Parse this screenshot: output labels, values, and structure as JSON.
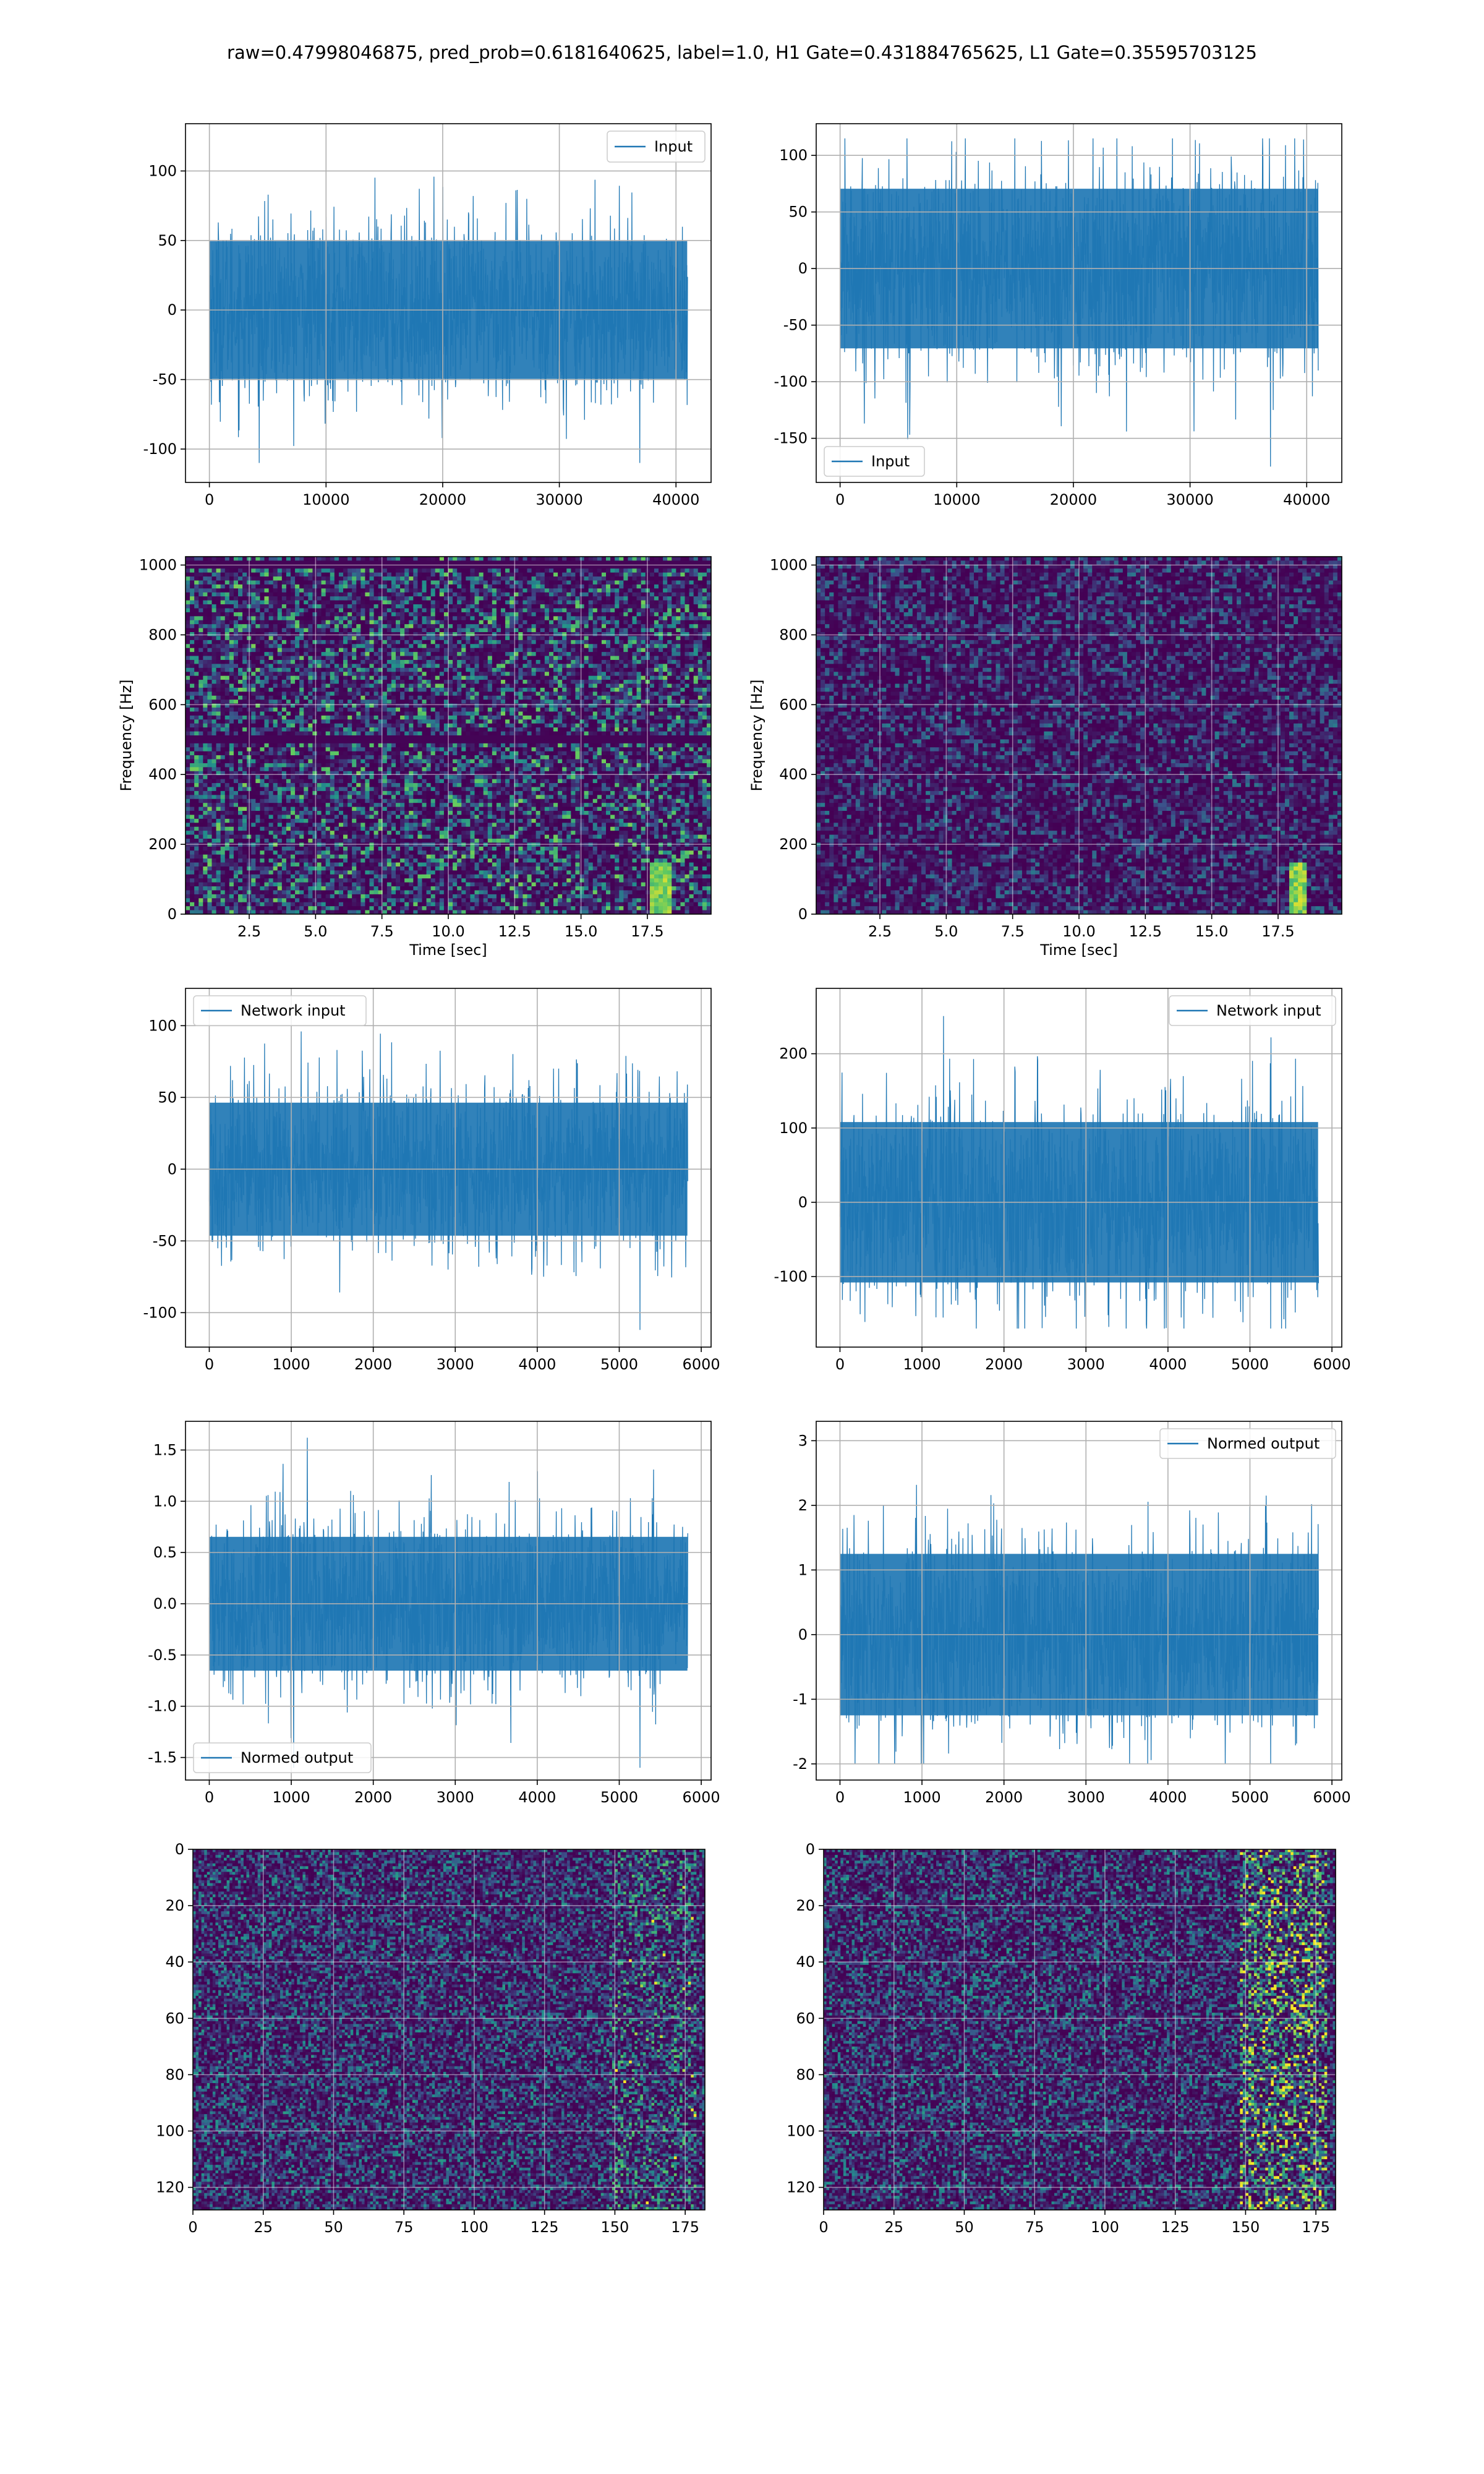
{
  "title": "raw=0.47998046875, pred_prob=0.6181640625, label=1.0, H1 Gate=0.431884765625, L1 Gate=0.35595703125",
  "colors": {
    "line": "#1f77b4",
    "grid": "#b0b0b0",
    "spine": "#000000"
  },
  "chart_data": [
    {
      "id": "h1-input",
      "type": "line",
      "series": [
        {
          "name": "Input",
          "n_points": 40960,
          "amplitude_range": [
            -110,
            123
          ]
        }
      ],
      "legend": "top-right",
      "xlim": [
        -2048,
        43008
      ],
      "ylim": [
        -124,
        134
      ],
      "xticks": [
        0,
        10000,
        20000,
        30000,
        40000
      ],
      "yticks": [
        -100,
        -50,
        0,
        50,
        100
      ],
      "grid": true,
      "xlabel": "",
      "ylabel": ""
    },
    {
      "id": "l1-input",
      "type": "line",
      "series": [
        {
          "name": "Input",
          "n_points": 40960,
          "amplitude_range": [
            -175,
            115
          ]
        }
      ],
      "legend": "bottom-left",
      "xlim": [
        -2048,
        43008
      ],
      "ylim": [
        -189,
        128
      ],
      "xticks": [
        0,
        10000,
        20000,
        30000,
        40000
      ],
      "yticks": [
        -150,
        -100,
        -50,
        0,
        50,
        100
      ],
      "grid": true,
      "xlabel": "",
      "ylabel": ""
    },
    {
      "id": "h1-spectrogram",
      "type": "heatmap",
      "colormap": "viridis",
      "xlim": [
        0.1,
        19.9
      ],
      "ylim": [
        0,
        1024
      ],
      "xticks": [
        2.5,
        5.0,
        7.5,
        10.0,
        12.5,
        15.0,
        17.5
      ],
      "yticks": [
        0,
        200,
        400,
        600,
        800,
        1000
      ],
      "grid": true,
      "xlabel": "Time [sec]",
      "ylabel": "Frequency [Hz]",
      "features": [
        "dark horizontal line near 500 Hz",
        "dark horizontal line near 1000 Hz",
        "bright chirp near 18 s below 150 Hz"
      ]
    },
    {
      "id": "l1-spectrogram",
      "type": "heatmap",
      "colormap": "viridis",
      "xlim": [
        0.1,
        19.9
      ],
      "ylim": [
        0,
        1024
      ],
      "xticks": [
        2.5,
        5.0,
        7.5,
        10.0,
        12.5,
        15.0,
        17.5
      ],
      "yticks": [
        0,
        200,
        400,
        600,
        800,
        1000
      ],
      "grid": true,
      "xlabel": "Time [sec]",
      "ylabel": "Frequency [Hz]",
      "features": [
        "bright chirp near 18.3 s below 150 Hz"
      ]
    },
    {
      "id": "h1-network-input",
      "type": "line",
      "series": [
        {
          "name": "Network input",
          "n_points": 5832,
          "amplitude_range": [
            -112,
            115
          ]
        }
      ],
      "legend": "top-left",
      "xlim": [
        -290,
        6120
      ],
      "ylim": [
        -124,
        126
      ],
      "xticks": [
        0,
        1000,
        2000,
        3000,
        4000,
        5000,
        6000
      ],
      "yticks": [
        -100,
        -50,
        0,
        50,
        100
      ],
      "grid": true,
      "xlabel": "",
      "ylabel": ""
    },
    {
      "id": "l1-network-input",
      "type": "line",
      "series": [
        {
          "name": "Network input",
          "n_points": 5832,
          "amplitude_range": [
            -170,
            268
          ]
        }
      ],
      "legend": "top-right",
      "xlim": [
        -290,
        6120
      ],
      "ylim": [
        -195,
        288
      ],
      "xticks": [
        0,
        1000,
        2000,
        3000,
        4000,
        5000,
        6000
      ],
      "yticks": [
        -100,
        0,
        100,
        200
      ],
      "grid": true,
      "xlabel": "",
      "ylabel": ""
    },
    {
      "id": "h1-normed-output",
      "type": "line",
      "series": [
        {
          "name": "Normed output",
          "n_points": 5832,
          "amplitude_range": [
            -1.6,
            1.62
          ]
        }
      ],
      "legend": "bottom-left",
      "xlim": [
        -290,
        6120
      ],
      "ylim": [
        -1.72,
        1.78
      ],
      "xticks": [
        0,
        1000,
        2000,
        3000,
        4000,
        5000,
        6000
      ],
      "yticks": [
        -1.5,
        -1.0,
        -0.5,
        0.0,
        0.5,
        1.0,
        1.5
      ],
      "grid": true,
      "xlabel": "",
      "ylabel": ""
    },
    {
      "id": "l1-normed-output",
      "type": "line",
      "series": [
        {
          "name": "Normed output",
          "n_points": 5832,
          "amplitude_range": [
            -2.0,
            3.1
          ]
        }
      ],
      "legend": "top-right",
      "xlim": [
        -290,
        6120
      ],
      "ylim": [
        -2.25,
        3.3
      ],
      "xticks": [
        0,
        1000,
        2000,
        3000,
        4000,
        5000,
        6000
      ],
      "yticks": [
        -2,
        -1,
        0,
        1,
        2,
        3
      ],
      "grid": true,
      "xlabel": "",
      "ylabel": ""
    },
    {
      "id": "h1-feature-map",
      "type": "heatmap",
      "colormap": "viridis",
      "shape": [
        128,
        182
      ],
      "xlim": [
        0,
        182
      ],
      "ylim": [
        128,
        0
      ],
      "xticks": [
        0,
        25,
        50,
        75,
        100,
        125,
        150,
        175
      ],
      "yticks": [
        0,
        20,
        40,
        60,
        80,
        100,
        120
      ],
      "grid": true,
      "xlabel": "",
      "ylabel": "",
      "features": [
        "brighter activations in columns 150-175"
      ]
    },
    {
      "id": "l1-feature-map",
      "type": "heatmap",
      "colormap": "viridis",
      "shape": [
        128,
        182
      ],
      "xlim": [
        0,
        182
      ],
      "ylim": [
        128,
        0
      ],
      "xticks": [
        0,
        25,
        50,
        75,
        100,
        125,
        150,
        175
      ],
      "yticks": [
        0,
        20,
        40,
        60,
        80,
        100,
        120
      ],
      "grid": true,
      "xlabel": "",
      "ylabel": "",
      "features": [
        "strong activations in columns 148-178"
      ]
    }
  ]
}
